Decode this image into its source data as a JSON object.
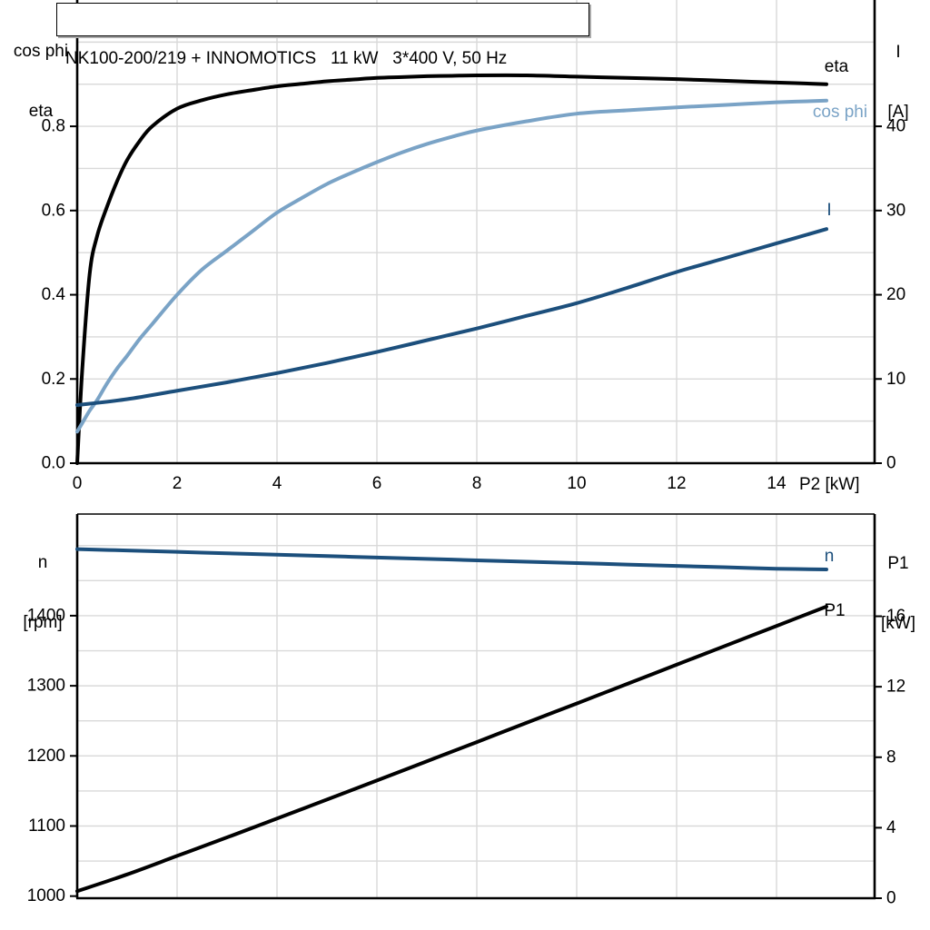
{
  "labels": {
    "title": "NK100-200/219 + INNOMOTICS   11 kW   3*400 V, 50 Hz",
    "top_left_axis": {
      "line1": "cos phi",
      "line2": "eta"
    },
    "top_right_axis": {
      "line1": "I",
      "line2": "[A]"
    },
    "x_axis": "P2 [kW]",
    "bottom_left_axis": {
      "line1": "n",
      "line2": "[rpm]"
    },
    "bottom_right_axis": {
      "line1": "P1",
      "line2": "[kW]"
    },
    "curve_labels": {
      "eta": "eta",
      "cos_phi": "cos phi",
      "current": "I",
      "speed": "n",
      "p1": "P1"
    }
  },
  "colors": {
    "black": "#000000",
    "dark_blue": "#1c4f7c",
    "light_blue": "#7aa3c6",
    "gridline": "#d9d9d9",
    "axis": "#000000"
  },
  "chart_data": [
    {
      "type": "line",
      "title": "NK100-200/219 + INNOMOTICS   11 kW   3*400 V, 50 Hz",
      "xlabel": "P2 [kW]",
      "x_range": [
        0,
        16
      ],
      "x_gridline_step": 2,
      "x_tick_values": [
        0,
        2,
        4,
        6,
        8,
        10,
        12,
        14
      ],
      "x_tick_labels": [
        "0",
        "2",
        "4",
        "6",
        "8",
        "10",
        "12",
        "14"
      ],
      "grid": true,
      "legend_position": "right-inline",
      "left_axis": {
        "title": "cos phi / eta",
        "range": [
          0,
          1.1
        ],
        "gridline_step": 0.1,
        "tick_values": [
          0.8,
          0.6,
          0.4,
          0.2,
          0.0
        ],
        "tick_labels": [
          "0.8",
          "0.6",
          "0.4",
          "0.2",
          "0.0"
        ]
      },
      "right_axis": {
        "title": "I [A]",
        "range": [
          0,
          55
        ],
        "gridline_step": 5,
        "tick_values": [
          40,
          30,
          20,
          10,
          0
        ],
        "tick_labels": [
          "40",
          "30",
          "20",
          "10",
          "0"
        ]
      },
      "series": [
        {
          "name": "eta",
          "axis": "left",
          "color": "#000000",
          "x": [
            0,
            0.1,
            0.25,
            0.4,
            0.6,
            0.8,
            1,
            1.25,
            1.5,
            2,
            2.5,
            3,
            3.5,
            4,
            4.5,
            5,
            5.5,
            6,
            6.5,
            7,
            7.5,
            8,
            9,
            10,
            11,
            12,
            13,
            14,
            15
          ],
          "values": [
            0,
            0.22,
            0.45,
            0.54,
            0.61,
            0.67,
            0.72,
            0.765,
            0.8,
            0.842,
            0.862,
            0.876,
            0.886,
            0.895,
            0.901,
            0.907,
            0.911,
            0.915,
            0.917,
            0.919,
            0.92,
            0.921,
            0.921,
            0.918,
            0.915,
            0.912,
            0.908,
            0.904,
            0.9
          ]
        },
        {
          "name": "cos phi",
          "axis": "left",
          "color": "#7aa3c6",
          "x": [
            0,
            0.1,
            0.25,
            0.4,
            0.6,
            0.8,
            1,
            1.25,
            1.5,
            2,
            2.5,
            3,
            3.5,
            4,
            4.5,
            5,
            5.5,
            6,
            6.5,
            7,
            7.5,
            8,
            9,
            10,
            11,
            12,
            13,
            14,
            15
          ],
          "values": [
            0.075,
            0.095,
            0.125,
            0.15,
            0.19,
            0.225,
            0.255,
            0.295,
            0.33,
            0.4,
            0.46,
            0.505,
            0.55,
            0.595,
            0.63,
            0.663,
            0.69,
            0.715,
            0.738,
            0.758,
            0.775,
            0.79,
            0.812,
            0.83,
            0.838,
            0.845,
            0.851,
            0.857,
            0.861
          ]
        },
        {
          "name": "I",
          "axis": "right",
          "color": "#1c4f7c",
          "x": [
            0,
            1,
            2,
            3,
            4,
            5,
            6,
            7,
            8,
            9,
            10,
            11,
            12,
            13,
            14,
            15
          ],
          "values": [
            6.9,
            7.6,
            8.6,
            9.6,
            10.7,
            11.9,
            13.2,
            14.6,
            16.0,
            17.5,
            19.0,
            20.8,
            22.7,
            24.4,
            26.1,
            27.8
          ]
        }
      ]
    },
    {
      "type": "line",
      "title": "",
      "xlabel": "",
      "x_range": [
        0,
        16
      ],
      "x_gridline_step": 2,
      "x_tick_values": [],
      "x_tick_labels": [],
      "grid": true,
      "left_axis": {
        "title": "n [rpm]",
        "range": [
          997,
          1545
        ],
        "gridline_step": 50,
        "tick_values": [
          1400,
          1300,
          1200,
          1100,
          1000
        ],
        "tick_labels": [
          "1400",
          "1300",
          "1200",
          "1100",
          "1000"
        ]
      },
      "right_axis": {
        "title": "P1 [kW]",
        "range": [
          0,
          21.8
        ],
        "gridline_step": 2,
        "tick_values": [
          16,
          12,
          8,
          4,
          0
        ],
        "tick_labels": [
          "16",
          "12",
          "8",
          "4",
          "0"
        ]
      },
      "series": [
        {
          "name": "n",
          "axis": "left",
          "color": "#1c4f7c",
          "x": [
            0,
            1,
            2,
            3,
            4,
            5,
            6,
            7,
            8,
            9,
            10,
            11,
            12,
            13,
            14,
            15
          ],
          "values": [
            1495,
            1493,
            1491,
            1489,
            1487,
            1485,
            1483,
            1481,
            1479,
            1477,
            1475,
            1473,
            1471,
            1469,
            1467,
            1466
          ]
        },
        {
          "name": "P1",
          "axis": "right",
          "color": "#000000",
          "x": [
            0,
            1,
            2,
            3,
            4,
            5,
            6,
            7,
            8,
            9,
            10,
            11,
            12,
            13,
            14,
            15
          ],
          "values": [
            0.4,
            1.35,
            2.4,
            3.45,
            4.52,
            5.6,
            6.68,
            7.77,
            8.86,
            9.96,
            11.05,
            12.15,
            13.25,
            14.35,
            15.45,
            16.55
          ]
        }
      ]
    }
  ]
}
